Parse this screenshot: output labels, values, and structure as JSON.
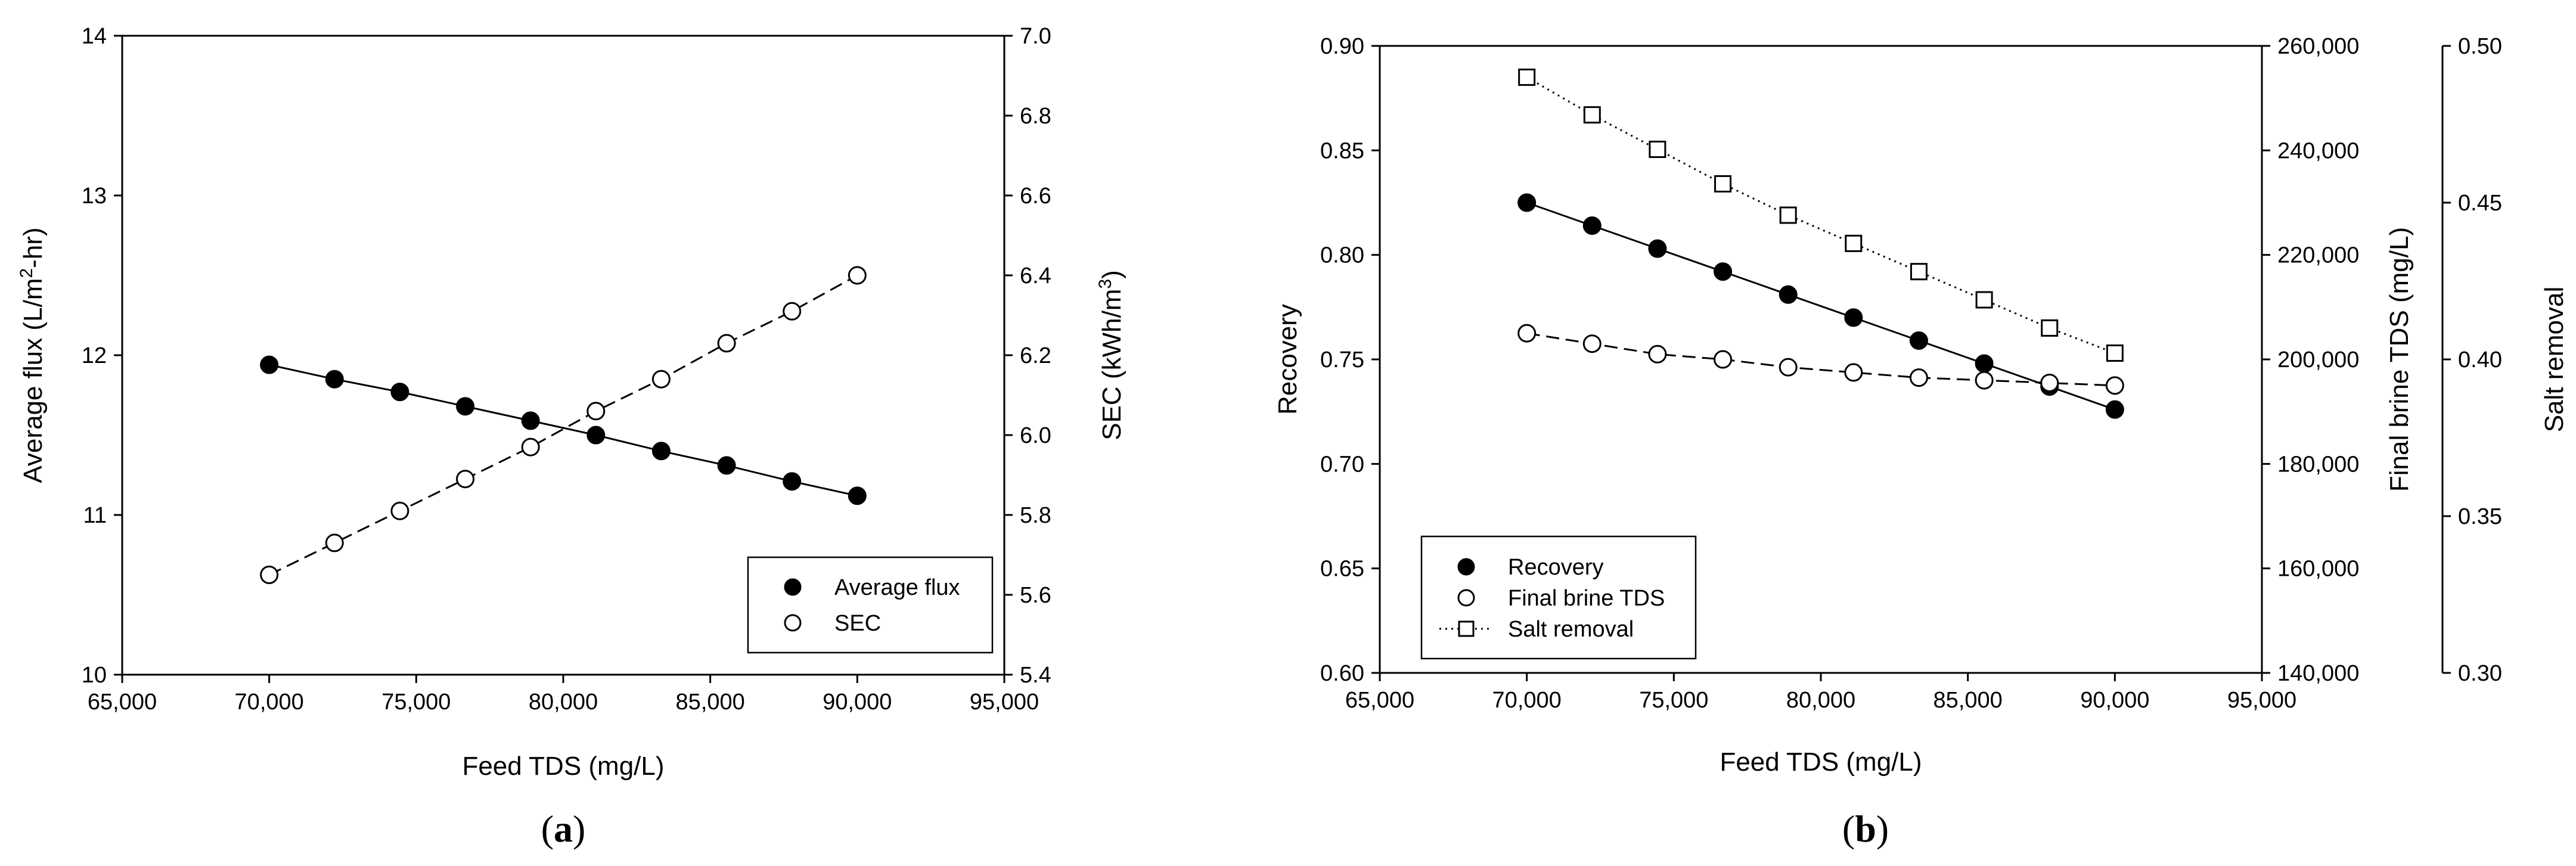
{
  "chart_data": [
    {
      "type": "line",
      "panel": "(a)",
      "panel_letter": "a",
      "xlabel": "Feed TDS (mg/L)",
      "xlim": [
        65000,
        95000
      ],
      "x_ticks": [
        65000,
        70000,
        75000,
        80000,
        85000,
        90000,
        95000
      ],
      "x_tick_labels": [
        "65,000",
        "70,000",
        "75,000",
        "80,000",
        "85,000",
        "90,000",
        "95,000"
      ],
      "y_left": {
        "label_pre": "Average flux (L/m",
        "label_sup": "2",
        "label_post": "-hr)",
        "lim": [
          10,
          14
        ],
        "ticks": [
          10,
          11,
          12,
          13,
          14
        ],
        "tick_labels": [
          "10",
          "11",
          "12",
          "13",
          "14"
        ]
      },
      "y_right": {
        "label_pre": "SEC (kWh/m",
        "label_sup": "3",
        "label_post": ")",
        "lim": [
          5.4,
          7.0
        ],
        "ticks": [
          5.4,
          5.6,
          5.8,
          6.0,
          6.2,
          6.4,
          6.6,
          6.8,
          7.0
        ],
        "tick_labels": [
          "5.4",
          "5.6",
          "5.8",
          "6.0",
          "6.2",
          "6.4",
          "6.6",
          "6.8",
          "7.0"
        ]
      },
      "x": [
        70000,
        72222,
        74444,
        76667,
        78889,
        81111,
        83333,
        85556,
        87778,
        90000
      ],
      "series": [
        {
          "name": "Average flux",
          "axis": "left",
          "marker": "filled-circle",
          "line": "solid",
          "values": [
            11.94,
            11.85,
            11.77,
            11.68,
            11.59,
            11.5,
            11.4,
            11.31,
            11.21,
            11.12
          ]
        },
        {
          "name": "SEC",
          "axis": "right",
          "marker": "open-circle",
          "line": "dashed",
          "values": [
            5.65,
            5.73,
            5.81,
            5.89,
            5.97,
            6.06,
            6.14,
            6.23,
            6.31,
            6.4
          ]
        }
      ],
      "legend": {
        "placement": "bottom-right",
        "entries": [
          "Average flux",
          "SEC"
        ]
      }
    },
    {
      "type": "line",
      "panel": "(b)",
      "panel_letter": "b",
      "xlabel": "Feed TDS (mg/L)",
      "xlim": [
        65000,
        95000
      ],
      "x_ticks": [
        65000,
        70000,
        75000,
        80000,
        85000,
        90000,
        95000
      ],
      "x_tick_labels": [
        "65,000",
        "70,000",
        "75,000",
        "80,000",
        "85,000",
        "90,000",
        "95,000"
      ],
      "y_left": {
        "label": "Recovery",
        "lim": [
          0.6,
          0.9
        ],
        "ticks": [
          0.6,
          0.65,
          0.7,
          0.75,
          0.8,
          0.85,
          0.9
        ],
        "tick_labels": [
          "0.60",
          "0.65",
          "0.70",
          "0.75",
          "0.80",
          "0.85",
          "0.90"
        ]
      },
      "y_right": {
        "label": "Final brine TDS (mg/L)",
        "lim": [
          140000,
          260000
        ],
        "ticks": [
          140000,
          160000,
          180000,
          200000,
          220000,
          240000,
          260000
        ],
        "tick_labels": [
          "140,000",
          "160,000",
          "180,000",
          "200,000",
          "220,000",
          "240,000",
          "260,000"
        ]
      },
      "y_right2": {
        "label": "Salt removal",
        "lim": [
          0.3,
          0.5
        ],
        "ticks": [
          0.3,
          0.35,
          0.4,
          0.45,
          0.5
        ],
        "tick_labels": [
          "0.30",
          "0.35",
          "0.40",
          "0.45",
          "0.50"
        ]
      },
      "x": [
        70000,
        72222,
        74444,
        76667,
        78889,
        81111,
        83333,
        85556,
        87778,
        90000
      ],
      "series": [
        {
          "name": "Recovery",
          "axis": "left",
          "marker": "filled-circle",
          "line": "solid",
          "values": [
            0.825,
            0.814,
            0.803,
            0.792,
            0.781,
            0.77,
            0.759,
            0.748,
            0.737,
            0.726
          ]
        },
        {
          "name": "Final brine TDS",
          "axis": "right",
          "marker": "open-circle",
          "line": "dashed",
          "values": [
            205000,
            203000,
            201000,
            200000,
            198500,
            197500,
            196500,
            196000,
            195500,
            195000
          ]
        },
        {
          "name": "Salt removal",
          "axis": "right2",
          "marker": "open-square",
          "line": "dotted",
          "values": [
            0.49,
            0.478,
            0.467,
            0.456,
            0.446,
            0.437,
            0.428,
            0.419,
            0.41,
            0.402
          ]
        }
      ],
      "legend": {
        "placement": "bottom-left",
        "entries": [
          "Recovery",
          "Final brine TDS",
          "Salt removal"
        ]
      }
    }
  ]
}
